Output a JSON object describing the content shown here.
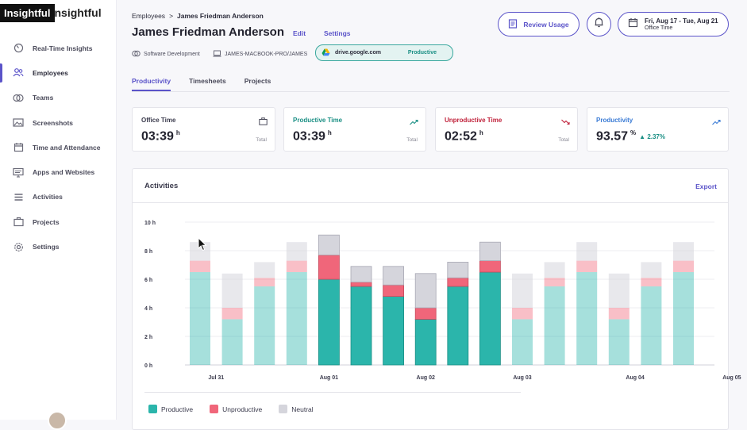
{
  "brand": {
    "badge": "Insightful",
    "rest": "nsightful"
  },
  "sidebar": {
    "items": [
      {
        "label": "Real-Time Insights",
        "icon": "gauge-icon",
        "active": false
      },
      {
        "label": "Employees",
        "icon": "users-icon",
        "active": true
      },
      {
        "label": "Teams",
        "icon": "teams-icon",
        "active": false
      },
      {
        "label": "Screenshots",
        "icon": "image-icon",
        "active": false
      },
      {
        "label": "Time and Attendance",
        "icon": "calendar-icon",
        "active": false
      },
      {
        "label": "Apps and Websites",
        "icon": "monitor-icon",
        "active": false
      },
      {
        "label": "Activities",
        "icon": "list-icon",
        "active": false
      },
      {
        "label": "Projects",
        "icon": "briefcase-icon",
        "active": false
      },
      {
        "label": "Settings",
        "icon": "gear-icon",
        "active": false
      }
    ]
  },
  "header": {
    "breadcrumb_parent": "Employees",
    "breadcrumb_sep": ">",
    "breadcrumb_current": "James Friedman Anderson",
    "title": "James Friedman Anderson",
    "edit_label": "Edit",
    "settings_label": "Settings",
    "team": "Software Development",
    "computer": "JAMES-MACBOOK-PRO/JAMES",
    "app_site": "drive.google.com",
    "app_status": "Productive",
    "review_label": "Review Usage",
    "date_range": "Fri, Aug 17 - Tue, Aug 21",
    "date_subtitle": "Office Time"
  },
  "tabs": [
    {
      "label": "Productivity",
      "active": true
    },
    {
      "label": "Timesheets",
      "active": false
    },
    {
      "label": "Projects",
      "active": false
    }
  ],
  "stats": [
    {
      "label": "Office Time",
      "value": "03:39",
      "unit": "h",
      "total": "Total",
      "color": "#3a3a4c",
      "icon": "briefcase-icon"
    },
    {
      "label": "Productive Time",
      "value": "03:39",
      "unit": "h",
      "total": "Total",
      "color": "#1a8f84",
      "icon": "trend-up-icon"
    },
    {
      "label": "Unproductive Time",
      "value": "02:52",
      "unit": "h",
      "total": "Total",
      "color": "#c0223b",
      "icon": "trend-down-icon"
    },
    {
      "label": "Productivity",
      "value": "93.57",
      "unit": "%",
      "delta": "▲ 2.37%",
      "color": "#3a7bd5",
      "icon": "trend-up-icon"
    }
  ],
  "activities": {
    "title": "Activities",
    "export_label": "Export",
    "legend": [
      {
        "label": "Productive",
        "color": "#2bb5ab"
      },
      {
        "label": "Unproductive",
        "color": "#f0667a"
      },
      {
        "label": "Neutral",
        "color": "#d5d5dc"
      }
    ]
  },
  "chart_data": {
    "type": "bar",
    "stacked": true,
    "x_tick_labels": [
      "Jul 31",
      "Aug 01",
      "Aug 02",
      "Aug 03",
      "Aug 04",
      "Aug 05"
    ],
    "x_tick_positions": [
      0.5,
      4,
      7,
      10,
      13.5,
      16.5
    ],
    "y_ticks": [
      0,
      2,
      4,
      6,
      8,
      10
    ],
    "y_tick_labels": [
      "0 h",
      "2 h",
      "4 h",
      "6 h",
      "8 h",
      "10 h"
    ],
    "ylim": [
      0,
      10
    ],
    "grid": true,
    "bars_count": 16,
    "highlighted": [
      false,
      false,
      false,
      false,
      true,
      true,
      true,
      true,
      true,
      true,
      false,
      false,
      false,
      false,
      false,
      false
    ],
    "series": [
      {
        "name": "Productive",
        "color": "#2bb5ab",
        "values": [
          6.5,
          3.2,
          5.5,
          6.5,
          6.0,
          5.5,
          4.8,
          3.2,
          5.5,
          6.5,
          3.2,
          5.5,
          6.5,
          3.2,
          5.5,
          6.5
        ]
      },
      {
        "name": "Unproductive",
        "color": "#f0667a",
        "values": [
          0.8,
          0.8,
          0.6,
          0.8,
          1.7,
          0.3,
          0.8,
          0.8,
          0.6,
          0.8,
          0.8,
          0.6,
          0.8,
          0.8,
          0.6,
          0.8
        ]
      },
      {
        "name": "Neutral",
        "color": "#d5d5dc",
        "values": [
          1.3,
          2.4,
          1.1,
          1.3,
          1.4,
          1.1,
          1.3,
          2.4,
          1.1,
          1.3,
          2.4,
          1.1,
          1.3,
          2.4,
          1.1,
          1.3
        ]
      }
    ]
  }
}
